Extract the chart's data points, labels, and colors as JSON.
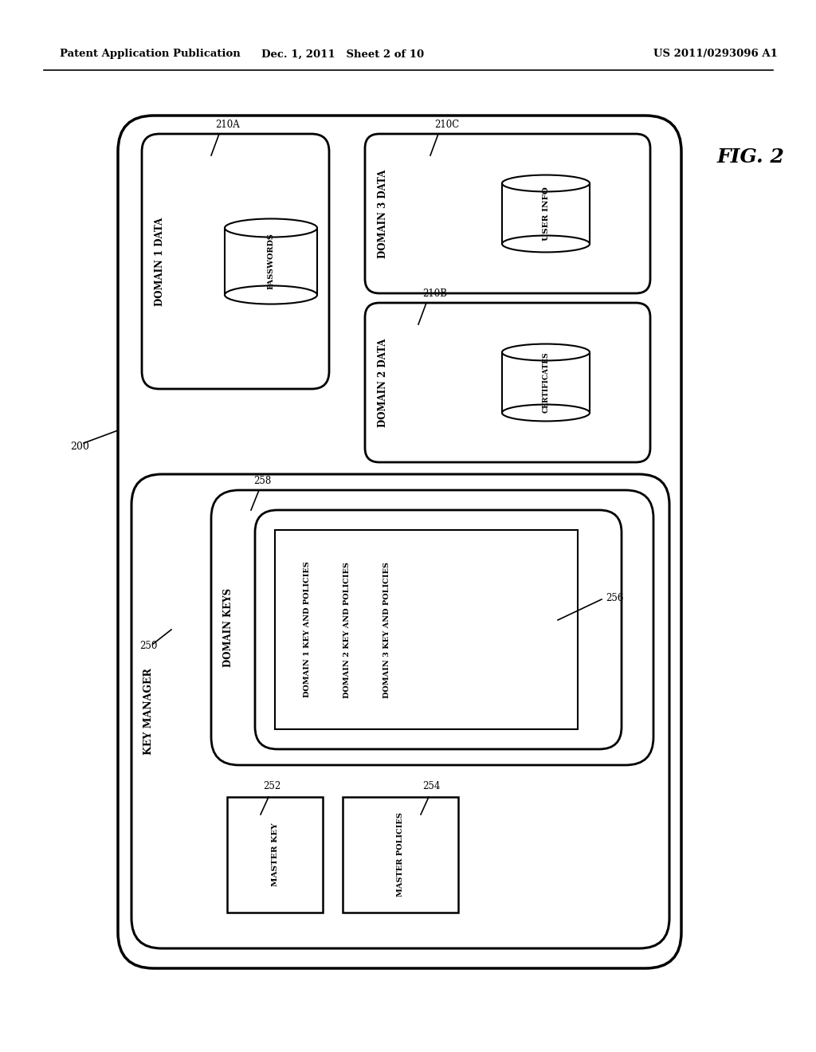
{
  "bg_color": "#ffffff",
  "header_left": "Patent Application Publication",
  "header_center": "Dec. 1, 2011   Sheet 2 of 10",
  "header_right": "US 2011/0293096 A1",
  "fig_label": "FIG. 2"
}
